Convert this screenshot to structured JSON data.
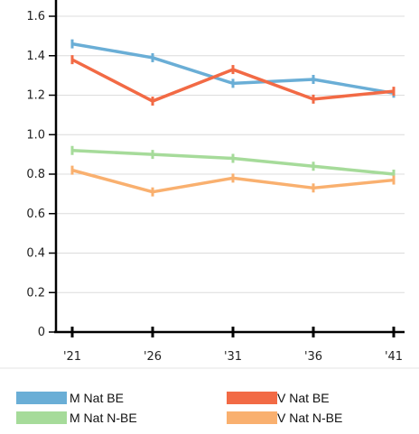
{
  "chart_data": {
    "type": "line",
    "title": "",
    "xlabel": "",
    "ylabel": "",
    "categories": [
      "'21",
      "'26",
      "'31",
      "'36",
      "'41"
    ],
    "ylim": [
      0,
      1.6
    ],
    "yticks": [
      "0",
      "0.2",
      "0.4",
      "0.6",
      "0.8",
      "1.0",
      "1.2",
      "1.4",
      "1.6"
    ],
    "grid": true,
    "legend_position": "bottom",
    "series": [
      {
        "name": "M Nat BE",
        "color": "#6aaed6",
        "values": [
          1.46,
          1.39,
          1.26,
          1.28,
          1.21
        ]
      },
      {
        "name": "V Nat BE",
        "color": "#f26a45",
        "values": [
          1.38,
          1.17,
          1.33,
          1.18,
          1.22
        ]
      },
      {
        "name": "M Nat N-BE",
        "color": "#a6db9a",
        "values": [
          0.92,
          0.9,
          0.88,
          0.84,
          0.8
        ]
      },
      {
        "name": "V Nat N-BE",
        "color": "#f9b06f",
        "values": [
          0.82,
          0.71,
          0.78,
          0.73,
          0.77
        ]
      }
    ]
  }
}
